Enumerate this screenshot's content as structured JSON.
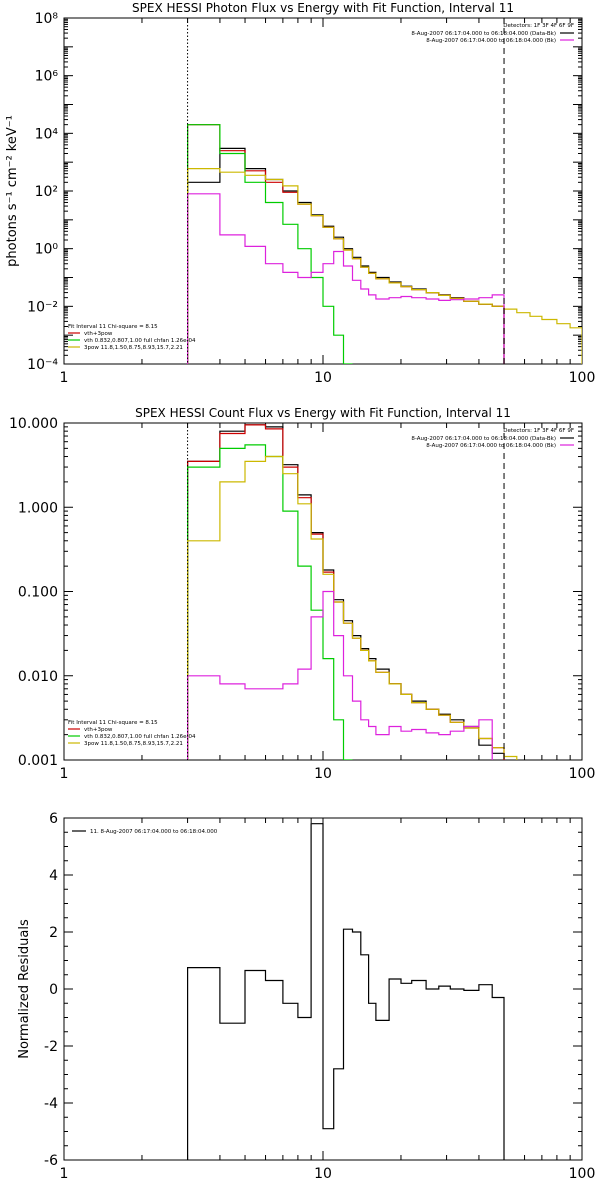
{
  "chart_data": [
    {
      "type": "line",
      "title": "SPEX HESSI Photon Flux vs Energy with Fit Function, Interval 11",
      "ylabel": "photons s⁻¹ cm⁻² keV⁻¹",
      "xlabel": "",
      "xscale": "log",
      "yscale": "log",
      "xlim": [
        1,
        100
      ],
      "ylim": [
        0.0001,
        100000000
      ],
      "x_ticks": [
        "1",
        "10",
        "100"
      ],
      "y_ticks": [
        "10⁻⁴",
        "10⁻²",
        "10⁰",
        "10²",
        "10⁴",
        "10⁶",
        "10⁸"
      ],
      "top_legend": {
        "detectors": "Detectors: 1F 3F 4F 6F 9F",
        "entries": [
          {
            "label": "8-Aug-2007 06:17:04.000 to 06:18:04.000 (Data-Bk)",
            "color": "#000000"
          },
          {
            "label": "8-Aug-2007 06:17:04.000 to 06:18:04.000 (Bk)",
            "color": "#dd22dd"
          }
        ]
      },
      "fit_legend": {
        "header": "Fit Interval 11    Chi-square = 8.15",
        "entries": [
          {
            "label": "vth+3pow",
            "color": "#cc0000"
          },
          {
            "label": "vth 0.832,0.807,1.00  full chfan 1.26e-04",
            "color": "#00cc00"
          },
          {
            "label": "3pow 11.8,1.50,8.75,8.93,15.7,2.21",
            "color": "#ccb800"
          }
        ]
      },
      "vlines": [
        {
          "x": 3,
          "style": "dotted"
        },
        {
          "x": 50,
          "style": "dashed"
        }
      ],
      "edges": [
        3,
        4,
        5,
        6,
        7,
        8,
        9,
        10,
        11,
        12,
        13,
        14,
        15,
        16,
        18,
        20,
        22,
        25,
        28,
        31,
        35,
        40,
        45,
        50,
        56,
        63,
        70,
        80,
        90,
        100
      ],
      "series": [
        {
          "name": "Data-Bk",
          "color": "#000000",
          "values": [
            200.0,
            3000.0,
            600.0,
            250.0,
            100.0,
            40,
            15,
            6,
            2.5,
            1,
            0.5,
            0.25,
            0.15,
            0.1,
            0.07,
            0.05,
            0.04,
            0.03,
            0.025,
            0.02,
            0.015,
            0.012,
            0.01,
            null,
            null,
            null,
            null,
            null,
            null
          ]
        },
        {
          "name": "vth+3pow",
          "color": "#cc0000",
          "values": [
            20000.0,
            2500.0,
            500.0,
            200.0,
            90,
            35,
            14,
            5.5,
            2.2,
            0.9,
            0.45,
            0.23,
            0.14,
            0.09,
            0.065,
            0.048,
            0.038,
            0.03,
            0.024,
            0.019,
            0.015,
            0.012,
            0.01,
            null,
            null,
            null,
            null,
            null,
            null
          ]
        },
        {
          "name": "vth",
          "color": "#00cc00",
          "values": [
            20000.0,
            2000.0,
            200.0,
            40,
            7,
            1,
            0.1,
            0.01,
            0.001,
            0.0001,
            null,
            null,
            null,
            null,
            null,
            null,
            null,
            null,
            null,
            null,
            null,
            null,
            null,
            null,
            null,
            null,
            null,
            null,
            null
          ]
        },
        {
          "name": "3pow",
          "color": "#ccb800",
          "values": [
            600.0,
            450.0,
            350.0,
            250.0,
            150.0,
            35,
            14,
            5.5,
            2.2,
            0.9,
            0.45,
            0.23,
            0.14,
            0.09,
            0.065,
            0.048,
            0.038,
            0.03,
            0.024,
            0.019,
            0.015,
            0.012,
            0.01,
            0.008,
            0.006,
            0.0045,
            0.0035,
            0.0025,
            0.0018
          ]
        },
        {
          "name": "Bk",
          "color": "#dd22dd",
          "values": [
            80,
            3,
            1.2,
            0.3,
            0.15,
            0.1,
            0.15,
            0.3,
            0.8,
            0.25,
            0.08,
            0.04,
            0.025,
            0.018,
            0.02,
            0.022,
            0.02,
            0.018,
            0.016,
            0.017,
            0.018,
            0.02,
            0.025,
            null,
            null,
            null,
            null,
            null,
            null
          ]
        }
      ]
    },
    {
      "type": "line",
      "title": "SPEX HESSI Count Flux vs Energy with Fit Function, Interval 11",
      "ylabel": "",
      "xlabel": "",
      "xscale": "log",
      "yscale": "log",
      "xlim": [
        1,
        100
      ],
      "ylim": [
        0.001,
        10
      ],
      "x_ticks": [
        "1",
        "10",
        "100"
      ],
      "y_ticks": [
        "0.001",
        "0.010",
        "0.100",
        "1.000",
        "10.000"
      ],
      "top_legend": {
        "detectors": "Detectors: 1F 3F 4F 6F 9F",
        "entries": [
          {
            "label": "8-Aug-2007 06:17:04.000 to 06:18:04.000 (Data-Bk)",
            "color": "#000000"
          },
          {
            "label": "8-Aug-2007 06:17:04.000 to 06:18:04.000 (Bk)",
            "color": "#dd22dd"
          }
        ]
      },
      "fit_legend": {
        "header": "Fit Interval 11    Chi-square = 8.15",
        "entries": [
          {
            "label": "vth+3pow",
            "color": "#cc0000"
          },
          {
            "label": "vth 0.832,0.807,1.00  full chfan 1.26e-04",
            "color": "#00cc00"
          },
          {
            "label": "3pow 11.8,1.50,8.75,8.93,15.7,2.21",
            "color": "#ccb800"
          }
        ]
      },
      "vlines": [
        {
          "x": 3,
          "style": "dotted"
        },
        {
          "x": 50,
          "style": "dashed"
        }
      ],
      "edges": [
        3,
        4,
        5,
        6,
        7,
        8,
        9,
        10,
        11,
        12,
        13,
        14,
        15,
        16,
        18,
        20,
        22,
        25,
        28,
        31,
        35,
        40,
        45,
        50,
        56,
        63,
        70
      ],
      "series": [
        {
          "name": "Data-Bk",
          "color": "#000000",
          "values": [
            3.5,
            8,
            9.5,
            9,
            3.2,
            1.4,
            0.5,
            0.18,
            0.08,
            0.045,
            0.03,
            0.021,
            0.016,
            0.012,
            0.008,
            0.006,
            0.005,
            0.004,
            0.0035,
            0.003,
            0.0025,
            0.0015,
            0.0012,
            null,
            null,
            null
          ]
        },
        {
          "name": "vth+3pow",
          "color": "#cc0000",
          "values": [
            3.5,
            7.5,
            9.5,
            8.5,
            3,
            1.3,
            0.48,
            0.17,
            0.075,
            0.042,
            0.028,
            0.02,
            0.015,
            0.011,
            0.008,
            0.006,
            0.0048,
            0.004,
            0.0034,
            0.0028,
            0.0024,
            0.0018,
            0.0014,
            null,
            null,
            null
          ]
        },
        {
          "name": "vth",
          "color": "#00cc00",
          "values": [
            3,
            5,
            5.5,
            4,
            0.9,
            0.2,
            0.06,
            0.016,
            0.003,
            0.001,
            null,
            null,
            null,
            null,
            null,
            null,
            null,
            null,
            null,
            null,
            null,
            null,
            null,
            null,
            null,
            null
          ]
        },
        {
          "name": "3pow",
          "color": "#ccb800",
          "values": [
            0.4,
            2,
            3.5,
            4,
            2.5,
            1.1,
            0.42,
            0.16,
            0.075,
            0.042,
            0.028,
            0.02,
            0.015,
            0.011,
            0.008,
            0.006,
            0.0048,
            0.004,
            0.0034,
            0.0028,
            0.0024,
            0.0018,
            0.0014,
            0.0011,
            0.0009,
            0.0008
          ]
        },
        {
          "name": "Bk",
          "color": "#dd22dd",
          "values": [
            0.01,
            0.008,
            0.007,
            0.007,
            0.008,
            0.012,
            0.05,
            0.1,
            0.03,
            0.01,
            0.005,
            0.003,
            0.0025,
            0.002,
            0.0025,
            0.0022,
            0.0023,
            0.0021,
            0.002,
            0.0022,
            0.0025,
            0.003,
            null,
            null,
            null,
            null
          ]
        }
      ]
    },
    {
      "type": "line",
      "title": "",
      "ylabel": "Normalized Residuals",
      "xlabel": "",
      "xscale": "log",
      "yscale": "linear",
      "xlim": [
        1,
        100
      ],
      "ylim": [
        -6,
        6
      ],
      "x_ticks": [
        "1",
        "10",
        "100"
      ],
      "y_ticks": [
        "-6",
        "-4",
        "-2",
        "0",
        "2",
        "4",
        "6"
      ],
      "legend": {
        "label": "11.  8-Aug-2007 06:17:04.000 to 06:18:04.000",
        "color": "#000000"
      },
      "edges": [
        3,
        4,
        5,
        6,
        7,
        8,
        9,
        10,
        11,
        12,
        13,
        14,
        15,
        16,
        18,
        20,
        22,
        25,
        28,
        31,
        35,
        40,
        45,
        50
      ],
      "series": [
        {
          "name": "residuals",
          "color": "#000000",
          "values": [
            0.75,
            -1.2,
            0.65,
            0.3,
            -0.5,
            -1,
            5.8,
            -4.9,
            -2.8,
            2.1,
            2,
            1.2,
            -0.5,
            -1.1,
            0.35,
            0.2,
            0.3,
            0,
            0.1,
            0,
            -0.05,
            0.15,
            -0.3
          ]
        }
      ]
    }
  ]
}
